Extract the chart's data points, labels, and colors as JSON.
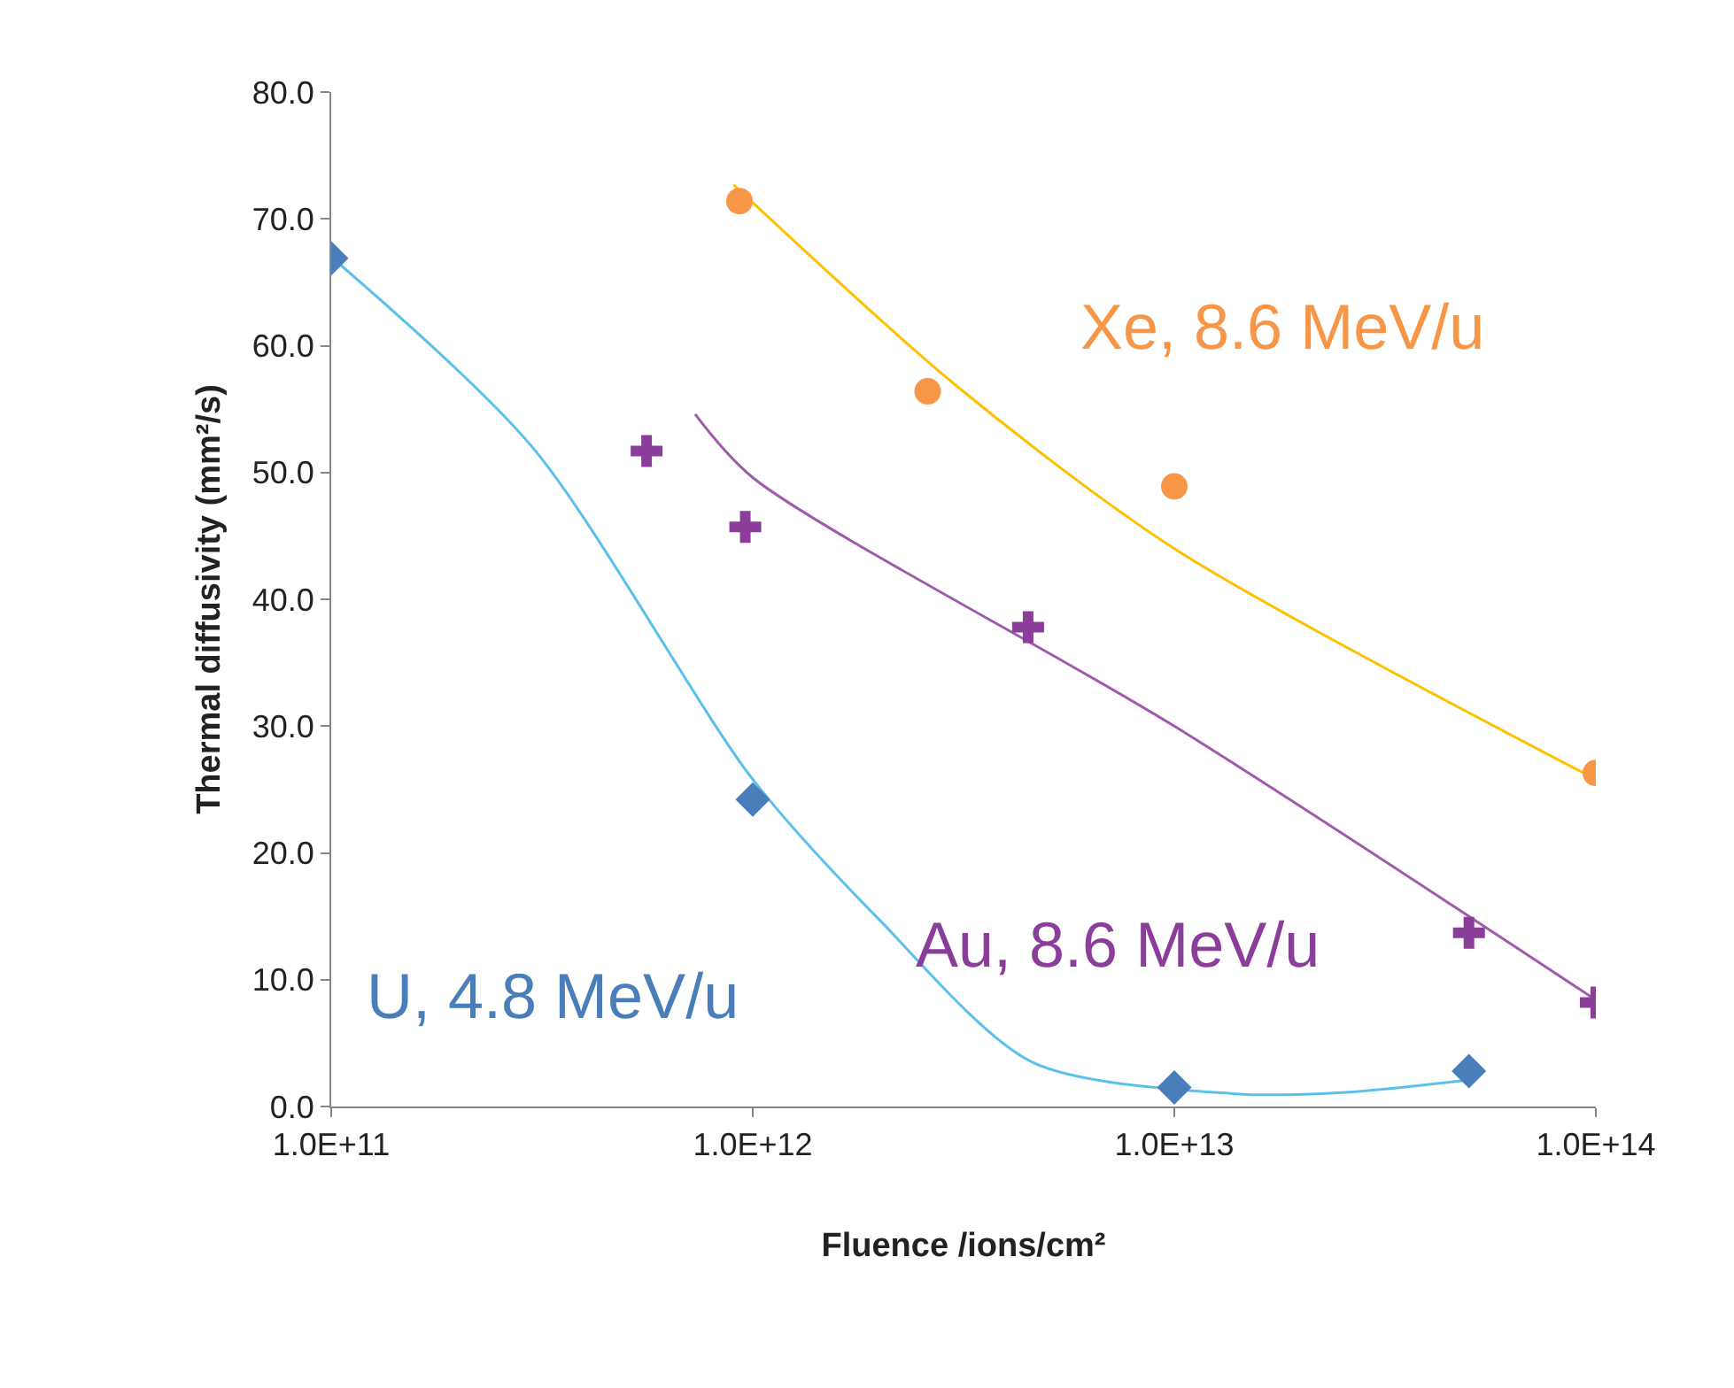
{
  "chart_data": {
    "type": "scatter",
    "xlabel": "Fluence /ions/cm²",
    "ylabel": "Thermal diffusivity (mm²/s)",
    "log": "x",
    "legend": false,
    "xlim": [
      100000000000.0,
      100000000000000.0
    ],
    "xticks": [
      {
        "value": 100000000000.0,
        "label": "1.0E+11"
      },
      {
        "value": 1000000000000.0,
        "label": "1.0E+12"
      },
      {
        "value": 10000000000000.0,
        "label": "1.0E+13"
      },
      {
        "value": 100000000000000.0,
        "label": "1.0E+14"
      }
    ],
    "ylim": [
      0,
      80
    ],
    "yticks": [
      {
        "value": 0,
        "label": "0.0"
      },
      {
        "value": 10,
        "label": "10.0"
      },
      {
        "value": 20,
        "label": "20.0"
      },
      {
        "value": 30,
        "label": "30.0"
      },
      {
        "value": 40,
        "label": "40.0"
      },
      {
        "value": 50,
        "label": "50.0"
      },
      {
        "value": 60,
        "label": "60.0"
      },
      {
        "value": 70,
        "label": "70.0"
      },
      {
        "value": 80,
        "label": "80.0"
      }
    ],
    "series": [
      {
        "type": "line",
        "color": "#5bc0eb",
        "line_style": "solid",
        "marker": "none",
        "x": [
          100000000000.0,
          300000000000.0,
          1000000000000.0,
          2000000000000.0,
          4600000000000.0,
          14000000000000.0,
          25000000000000.0,
          50000000000000.0
        ],
        "values": [
          67,
          52,
          25.8,
          14.7,
          3.5,
          1.0,
          1.1,
          2.1
        ]
      },
      {
        "type": "line",
        "color": "#a05aab",
        "line_style": "solid",
        "marker": "none",
        "x": [
          730000000000.0,
          1000000000000.0,
          10000000000000.0,
          100000000000000.0
        ],
        "values": [
          54.6,
          49.6,
          30,
          8.4
        ]
      },
      {
        "type": "line",
        "color": "#ffc000",
        "line_style": "solid",
        "marker": "none",
        "x": [
          900000000000.0,
          3000000000000.0,
          10000000000000.0,
          100000000000000.0
        ],
        "values": [
          72.7,
          57,
          44,
          25.8
        ]
      },
      {
        "name": "U, 4.8 MeV/u",
        "color": "#4a7ebb",
        "marker": "diamond",
        "x": [
          100000000000.0,
          1000000000000.0,
          10000000000000.0,
          50000000000000.0
        ],
        "values": [
          66.9,
          24.2,
          1.5,
          2.8
        ]
      },
      {
        "name": "Au, 8.6 MeV/u",
        "color": "#8b3d9a",
        "marker": "cross",
        "x": [
          560000000000.0,
          960000000000.0,
          4500000000000.0,
          50000000000000.0,
          100000000000000.0
        ],
        "values": [
          51.7,
          45.7,
          37.8,
          13.7,
          8.2
        ]
      },
      {
        "name": "Xe, 8.6 MeV/u",
        "color": "#f79646",
        "marker": "circle",
        "x": [
          930000000000.0,
          2600000000000.0,
          10000000000000.0,
          100000000000000.0
        ],
        "values": [
          71.4,
          56.4,
          48.9,
          26.3
        ]
      }
    ]
  }
}
